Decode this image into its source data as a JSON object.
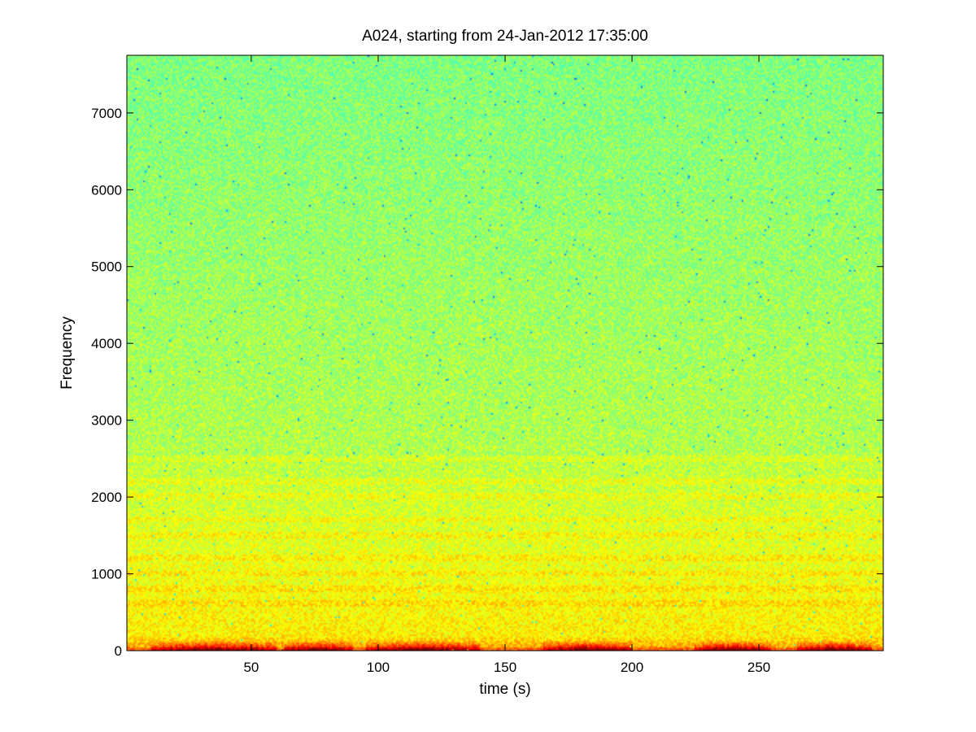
{
  "chart_data": {
    "type": "heatmap",
    "subtype": "spectrogram",
    "title": "A024, starting from 24-Jan-2012 17:35:00",
    "xlabel": "time (s)",
    "ylabel": "Frequency",
    "xlim": [
      1,
      299
    ],
    "ylim": [
      0,
      7750
    ],
    "xticks": [
      50,
      100,
      150,
      200,
      250
    ],
    "yticks": [
      0,
      1000,
      2000,
      3000,
      4000,
      5000,
      6000,
      7000
    ],
    "colormap": "jet",
    "grid": false,
    "legend": "none",
    "description_levels": {
      "low_freq_band_hz": [
        0,
        150
      ],
      "low_freq_intensity": "high (red/orange)",
      "mid_band_hz": [
        150,
        2500
      ],
      "mid_band_intensity": "medium (yellow)",
      "high_band_hz": [
        2500,
        7750
      ],
      "high_band_intensity": "low (green/cyan)"
    },
    "horizontal_bands_hz": [
      600,
      800,
      1000,
      1200,
      1500,
      1700,
      2000,
      2200,
      2500
    ],
    "red_bursts_time_s": [
      [
        10,
        60
      ],
      [
        62,
        90
      ],
      [
        95,
        140
      ],
      [
        165,
        200
      ],
      [
        225,
        255
      ],
      [
        265,
        295
      ]
    ]
  },
  "colors": {
    "background": "#ffffff",
    "axis": "#000000",
    "cyan": "#3fe0b8",
    "green": "#8cf26a",
    "yellow": "#f2f20d",
    "orange": "#ff9a00",
    "red": "#c81e00"
  }
}
